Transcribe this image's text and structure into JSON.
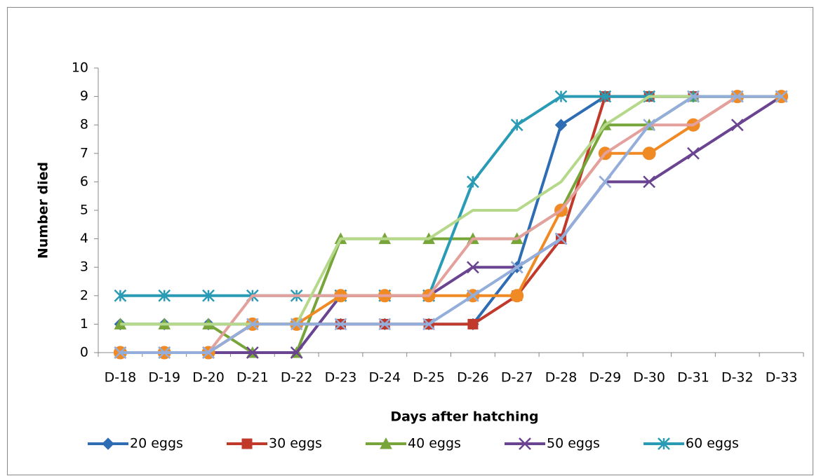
{
  "chart_data": {
    "type": "line",
    "x_label": "Days after hatching",
    "y_label": "Number died",
    "categories": [
      "D-18",
      "D-19",
      "D-20",
      "D-21",
      "D-22",
      "D-23",
      "D-24",
      "D-25",
      "D-26",
      "D-27",
      "D-28",
      "D-29",
      "D-30",
      "D-31",
      "D-32",
      "D-33"
    ],
    "ylim": [
      0,
      10
    ],
    "yticks": [
      0,
      1,
      2,
      3,
      4,
      5,
      6,
      7,
      8,
      9,
      10
    ],
    "legend": "bottom",
    "series": [
      {
        "name": "20 eggs",
        "color": "#2e6db4",
        "marker": "diamond",
        "values": [
          1,
          1,
          1,
          1,
          1,
          1,
          1,
          1,
          1,
          3,
          8,
          9,
          9,
          9,
          9,
          9
        ]
      },
      {
        "name": "30 eggs",
        "color": "#c0392b",
        "marker": "square",
        "values": [
          0,
          0,
          0,
          1,
          1,
          1,
          1,
          1,
          1,
          2,
          4,
          9,
          9,
          9,
          9,
          9
        ]
      },
      {
        "name": "40 eggs",
        "color": "#77a53a",
        "marker": "triangle",
        "values": [
          1,
          1,
          1,
          0,
          0,
          4,
          4,
          4,
          4,
          4,
          5,
          8,
          8,
          9,
          9,
          9
        ]
      },
      {
        "name": "50 eggs",
        "color": "#6a4391",
        "marker": "x",
        "values": [
          0,
          0,
          0,
          0,
          0,
          2,
          2,
          2,
          3,
          3,
          4,
          6,
          6,
          7,
          8,
          9
        ]
      },
      {
        "name": "60 eggs",
        "color": "#2a9bb5",
        "marker": "star",
        "values": [
          2,
          2,
          2,
          2,
          2,
          2,
          2,
          2,
          6,
          8,
          9,
          9,
          9,
          9,
          9,
          9
        ]
      },
      {
        "color": "#f08a24",
        "marker": "circle",
        "values": [
          0,
          0,
          0,
          1,
          1,
          2,
          2,
          2,
          2,
          2,
          5,
          7,
          7,
          8,
          9,
          9
        ]
      },
      {
        "color": "#e3a09c",
        "values": [
          0,
          0,
          0,
          2,
          2,
          2,
          2,
          2,
          4,
          4,
          5,
          7,
          8,
          8,
          9,
          9
        ]
      },
      {
        "color": "#b6d88a",
        "values": [
          1,
          1,
          1,
          1,
          1,
          4,
          4,
          4,
          5,
          5,
          6,
          8,
          9,
          9,
          9,
          9
        ]
      },
      {
        "color": "#94aedb",
        "marker": "x",
        "values": [
          0,
          0,
          0,
          1,
          1,
          1,
          1,
          1,
          2,
          3,
          4,
          6,
          8,
          9,
          9,
          9
        ]
      }
    ]
  }
}
